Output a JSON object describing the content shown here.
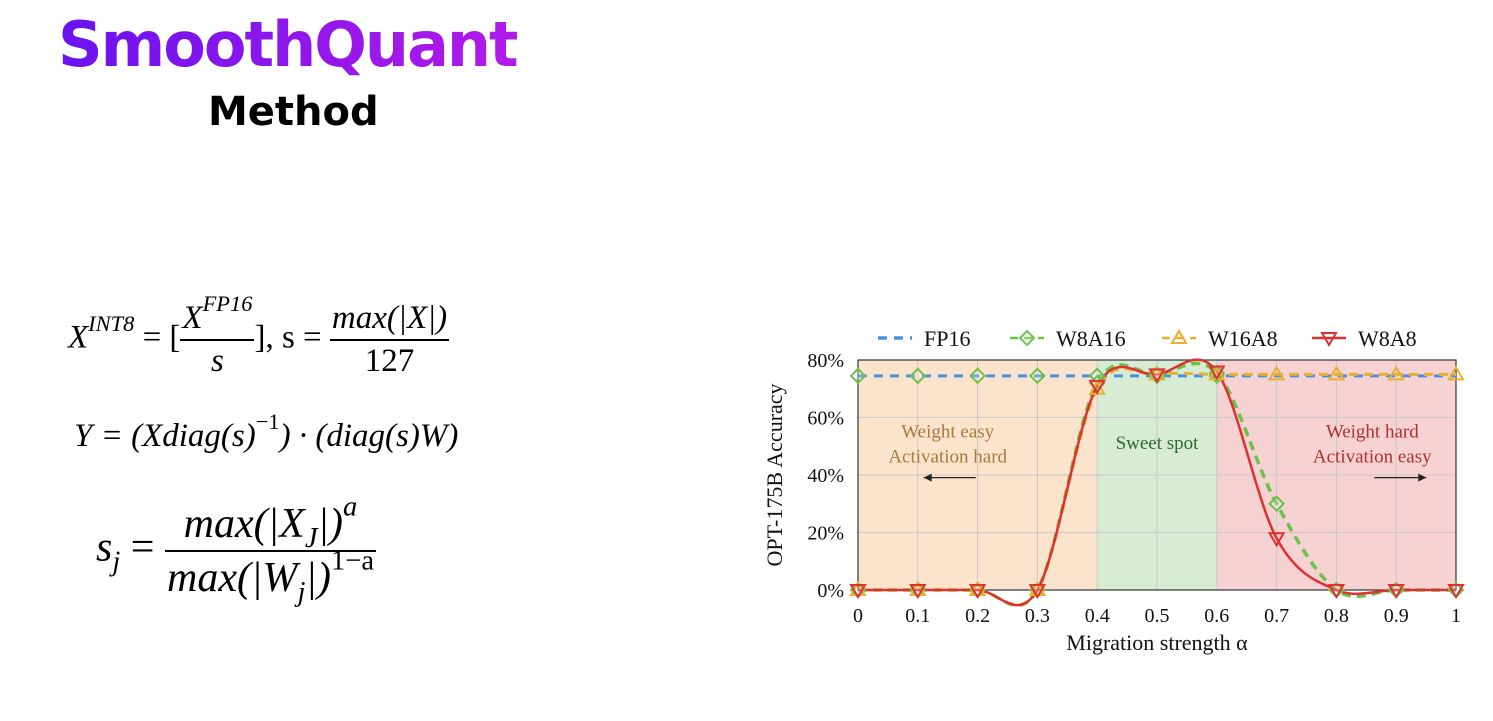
{
  "header": {
    "brand": "SmoothQuant",
    "subtitle": "Method"
  },
  "equations": {
    "eq1": {
      "lhs": "X",
      "lhs_sup": "INT8",
      "eq": "= [",
      "num": "X",
      "num_sup": "FP16",
      "den": "s",
      "mid": "], s =",
      "rnum": "max(|X|)",
      "rden": "127"
    },
    "eq2": {
      "text": "Y = (Xdiag(s)",
      "sup1": "−1",
      "rest": ") · (diag(s)W)"
    },
    "eq3": {
      "lhs": "s",
      "lhs_sub": "j",
      "eq": "=",
      "num_a": "max(|X",
      "num_sub": "J",
      "num_b": "|)",
      "num_sup": "a",
      "den_a": "max(|W",
      "den_sub": "j",
      "den_b": "|)",
      "den_sup": "1−a"
    }
  },
  "chart_data": {
    "type": "line",
    "xlabel": "Migration strength α",
    "ylabel": "OPT-175B Accuracy",
    "xlim": [
      0,
      1
    ],
    "ylim": [
      0,
      80
    ],
    "x": [
      0,
      0.1,
      0.2,
      0.3,
      0.4,
      0.5,
      0.6,
      0.7,
      0.8,
      0.9,
      1
    ],
    "x_tick_labels": [
      "0",
      "0.1",
      "0.2",
      "0.3",
      "0.4",
      "0.5",
      "0.6",
      "0.7",
      "0.8",
      "0.9",
      "1"
    ],
    "y_ticks": [
      0,
      20,
      40,
      60,
      80
    ],
    "y_tick_labels": [
      "0%",
      "20%",
      "40%",
      "60%",
      "80%"
    ],
    "grid": true,
    "legend_position": "top",
    "series": [
      {
        "name": "FP16",
        "color": "#4a90e2",
        "style": "dashed",
        "marker": "none",
        "values": [
          74.5,
          74.5,
          74.5,
          74.5,
          74.5,
          74.5,
          74.5,
          74.5,
          74.5,
          74.5,
          74.5
        ]
      },
      {
        "name": "W8A16",
        "color": "#6cc24a",
        "style": "dashed",
        "marker": "diamond",
        "values": [
          74.5,
          74.5,
          74.5,
          74.5,
          74.5,
          74.5,
          74.5,
          74.5,
          74.5,
          74.5,
          74.5
        ],
        "dashed_curve_values": [
          0,
          0,
          0,
          0,
          72,
          75,
          75.5,
          30,
          0,
          0,
          0
        ]
      },
      {
        "name": "W16A8",
        "color": "#e8b030",
        "style": "dashed",
        "marker": "triangle-up",
        "values": [
          0,
          0,
          0,
          0,
          70,
          75,
          75,
          75,
          75,
          75,
          75
        ]
      },
      {
        "name": "W8A8",
        "color": "#e03030",
        "style": "solid",
        "marker": "triangle-down",
        "values": [
          0,
          0,
          0,
          0,
          71,
          75,
          76,
          18,
          0,
          0,
          0
        ]
      }
    ],
    "regions": [
      {
        "from": 0,
        "to": 0.4,
        "color": "#fbe3cc",
        "label_lines": [
          "Weight easy",
          "Activation hard"
        ],
        "label_color": "#a87a3e",
        "arrow": "left"
      },
      {
        "from": 0.4,
        "to": 0.6,
        "color": "#d7ecd3",
        "label_lines": [
          "Sweet spot"
        ],
        "label_color": "#2e6a2e"
      },
      {
        "from": 0.6,
        "to": 1,
        "color": "#f6d2d2",
        "label_lines": [
          "Weight hard",
          "Activation easy"
        ],
        "label_color": "#b03030",
        "arrow": "right"
      }
    ]
  }
}
